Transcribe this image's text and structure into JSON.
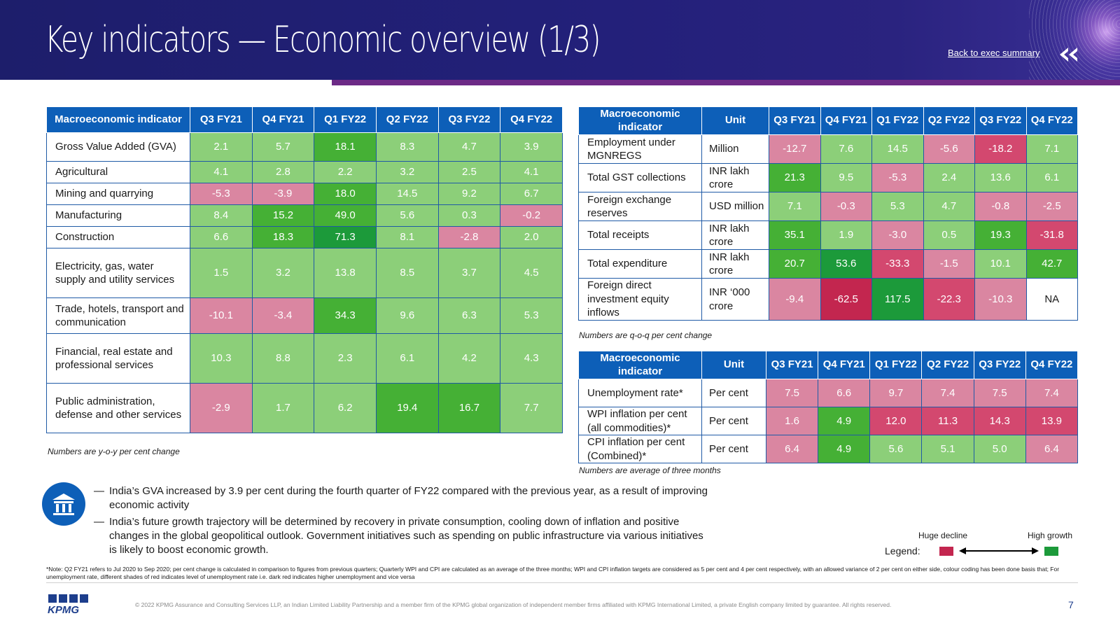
{
  "header": {
    "title": "Key indicators — Economic overview (1/3)",
    "back_link": "Back to exec summary"
  },
  "colors": {
    "deep_red": "#c3264f",
    "red": "#d3486f",
    "pink": "#da86a1",
    "light_green": "#8ccf79",
    "green": "#45b035",
    "deep_green": "#1c9a3a",
    "header_blue": "#0d5fb8",
    "navy": "#1d1e6b",
    "accent_purple": "#6c2a86"
  },
  "gva_table": {
    "headers": [
      "Macroeconomic indicator",
      "Q3 FY21",
      "Q4 FY21",
      "Q1 FY22",
      "Q2 FY22",
      "Q3 FY22",
      "Q4 FY22"
    ],
    "rows": [
      {
        "label": "Gross Value Added (GVA)",
        "values": [
          "2.1",
          "5.7",
          "18.1",
          "8.3",
          "4.7",
          "3.9"
        ],
        "levels": [
          "lg",
          "lg",
          "g",
          "lg",
          "lg",
          "lg"
        ]
      },
      {
        "label": "Agricultural",
        "values": [
          "4.1",
          "2.8",
          "2.2",
          "3.2",
          "2.5",
          "4.1"
        ],
        "levels": [
          "lg",
          "lg",
          "lg",
          "lg",
          "lg",
          "lg"
        ]
      },
      {
        "label": "Mining and quarrying",
        "values": [
          "-5.3",
          "-3.9",
          "18.0",
          "14.5",
          "9.2",
          "6.7"
        ],
        "levels": [
          "p",
          "p",
          "g",
          "lg",
          "lg",
          "lg"
        ]
      },
      {
        "label": "Manufacturing",
        "values": [
          "8.4",
          "15.2",
          "49.0",
          "5.6",
          "0.3",
          "-0.2"
        ],
        "levels": [
          "lg",
          "g",
          "g",
          "lg",
          "lg",
          "p"
        ]
      },
      {
        "label": "Construction",
        "values": [
          "6.6",
          "18.3",
          "71.3",
          "8.1",
          "-2.8",
          "2.0"
        ],
        "levels": [
          "lg",
          "g",
          "dg",
          "lg",
          "p",
          "lg"
        ]
      },
      {
        "label": "Electricity, gas, water supply and utility services",
        "values": [
          "1.5",
          "3.2",
          "13.8",
          "8.5",
          "3.7",
          "4.5"
        ],
        "levels": [
          "lg",
          "lg",
          "lg",
          "lg",
          "lg",
          "lg"
        ]
      },
      {
        "label": "Trade, hotels, transport and communication",
        "values": [
          "-10.1",
          "-3.4",
          "34.3",
          "9.6",
          "6.3",
          "5.3"
        ],
        "levels": [
          "p",
          "p",
          "g",
          "lg",
          "lg",
          "lg"
        ]
      },
      {
        "label": "Financial, real estate and professional services",
        "values": [
          "10.3",
          "8.8",
          "2.3",
          "6.1",
          "4.2",
          "4.3"
        ],
        "levels": [
          "lg",
          "lg",
          "lg",
          "lg",
          "lg",
          "lg"
        ]
      },
      {
        "label": "Public administration, defense and other services",
        "values": [
          "-2.9",
          "1.7",
          "6.2",
          "19.4",
          "16.7",
          "7.7"
        ],
        "levels": [
          "p",
          "lg",
          "lg",
          "g",
          "g",
          "lg"
        ]
      }
    ],
    "note": "Numbers are y-o-y per cent change"
  },
  "qoq_table": {
    "headers": [
      "Macroeconomic indicator",
      "Unit",
      "Q3 FY21",
      "Q4 FY21",
      "Q1 FY22",
      "Q2 FY22",
      "Q3 FY22",
      "Q4 FY22"
    ],
    "rows": [
      {
        "label": "Employment under MGNREGS",
        "unit": "Million",
        "values": [
          "-12.7",
          "7.6",
          "14.5",
          "-5.6",
          "-18.2",
          "7.1"
        ],
        "levels": [
          "p",
          "lg",
          "lg",
          "p",
          "r",
          "lg"
        ]
      },
      {
        "label": "Total GST collections",
        "unit": "INR lakh crore",
        "values": [
          "21.3",
          "9.5",
          "-5.3",
          "2.4",
          "13.6",
          "6.1"
        ],
        "levels": [
          "g",
          "lg",
          "p",
          "lg",
          "lg",
          "lg"
        ]
      },
      {
        "label": "Foreign exchange reserves",
        "unit": "USD million",
        "values": [
          "7.1",
          "-0.3",
          "5.3",
          "4.7",
          "-0.8",
          "-2.5"
        ],
        "levels": [
          "lg",
          "p",
          "lg",
          "lg",
          "p",
          "p"
        ]
      },
      {
        "label": "Total receipts",
        "unit": "INR lakh crore",
        "values": [
          "35.1",
          "1.9",
          "-3.0",
          "0.5",
          "19.3",
          "-31.8"
        ],
        "levels": [
          "g",
          "lg",
          "p",
          "lg",
          "g",
          "r"
        ]
      },
      {
        "label": "Total expenditure",
        "unit": "INR lakh crore",
        "values": [
          "20.7",
          "53.6",
          "-33.3",
          "-1.5",
          "10.1",
          "42.7"
        ],
        "levels": [
          "g",
          "dg",
          "r",
          "p",
          "lg",
          "g"
        ]
      },
      {
        "label": "Foreign direct investment equity inflows",
        "unit": "INR ‘000 crore",
        "values": [
          "-9.4",
          "-62.5",
          "117.5",
          "-22.3",
          "-10.3",
          "NA"
        ],
        "levels": [
          "p",
          "dr",
          "dg",
          "r",
          "p",
          "na"
        ]
      }
    ],
    "note": "Numbers are q-o-q per cent change"
  },
  "avg_table": {
    "headers": [
      "Macroeconomic indicator",
      "Unit",
      "Q3 FY21",
      "Q4 FY21",
      "Q1 FY22",
      "Q2 FY22",
      "Q3 FY22",
      "Q4 FY22"
    ],
    "rows": [
      {
        "label": "Unemployment rate*",
        "unit": "Per cent",
        "values": [
          "7.5",
          "6.6",
          "9.7",
          "7.4",
          "7.5",
          "7.4"
        ],
        "levels": [
          "p",
          "p",
          "p",
          "p",
          "p",
          "p"
        ]
      },
      {
        "label": "WPI inflation per cent (all commodities)*",
        "unit": "Per cent",
        "values": [
          "1.6",
          "4.9",
          "12.0",
          "11.3",
          "14.3",
          "13.9"
        ],
        "levels": [
          "p",
          "g",
          "r",
          "r",
          "r",
          "r"
        ]
      },
      {
        "label": "CPI inflation per cent (Combined)*",
        "unit": "Per cent",
        "values": [
          "6.4",
          "4.9",
          "5.6",
          "5.1",
          "5.0",
          "6.4"
        ],
        "levels": [
          "p",
          "g",
          "lg",
          "lg",
          "lg",
          "p"
        ]
      }
    ],
    "note": "Numbers are average of three months"
  },
  "bullets": [
    "India’s GVA increased by 3.9 per cent during the fourth quarter of FY22 compared with the previous year, as a result of improving economic activity",
    "India’s future growth trajectory will be determined by recovery in private consumption, cooling down of inflation and positive changes in the global geopolitical outlook. Government initiatives such as spending on public infrastructure via various initiatives is likely to boost economic growth."
  ],
  "legend": {
    "title": "Legend:",
    "decline_label": "Huge decline",
    "growth_label": "High growth"
  },
  "footnote": "*Note: Q2 FY21 refers to Jul 2020 to Sep 2020; per cent change is calculated in comparison to figures from previous quarters; Quarterly WPI and CPI are calculated as an average of the three months; WPI and CPI inflation targets are considered as 5 per cent and 4 per cent respectively, with an allowed variance of 2 per cent on either side, colour coding has been done basis that; For unemployment rate, different shades of red indicates level of unemployment rate i.e. dark red indicates higher unemployment and vice versa",
  "footer": {
    "logo_text": "KPMG",
    "copyright": "© 2022 KPMG Assurance and Consulting Services LLP, an Indian Limited Liability Partnership and a member firm of the KPMG global organization of independent member firms affiliated with KPMG International Limited, a private English company limited by guarantee. All rights reserved.",
    "page_number": "7"
  }
}
